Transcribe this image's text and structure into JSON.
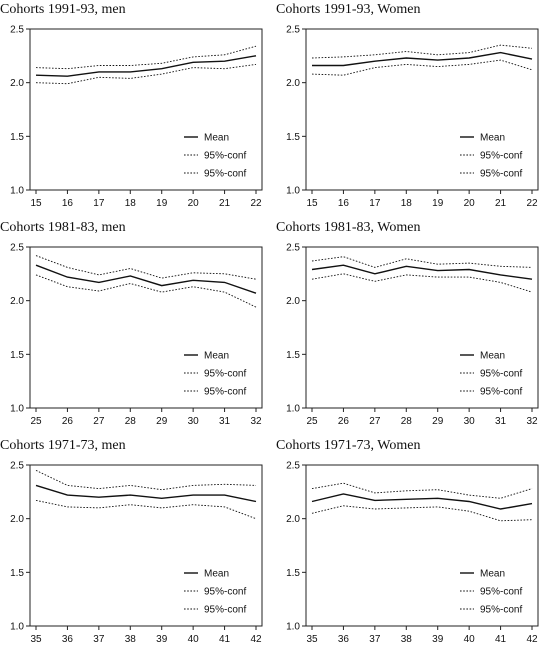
{
  "chart_data": [
    {
      "type": "line",
      "title": "Cohorts 1991-93, men",
      "x": [
        15,
        16,
        17,
        18,
        19,
        20,
        21,
        22
      ],
      "ylim": [
        1.0,
        2.5
      ],
      "yticks": [
        "1.0",
        "1.5",
        "2.0",
        "2.5"
      ],
      "legend_position": "bottom-right",
      "series": [
        {
          "name": "Mean",
          "style": "solid",
          "values": [
            2.07,
            2.06,
            2.1,
            2.1,
            2.13,
            2.19,
            2.2,
            2.25
          ]
        },
        {
          "name": "95%-conf",
          "style": "dotted",
          "values": [
            2.14,
            2.13,
            2.16,
            2.16,
            2.18,
            2.24,
            2.26,
            2.34
          ]
        },
        {
          "name": "95%-conf",
          "style": "dotted",
          "values": [
            2.0,
            1.99,
            2.05,
            2.04,
            2.08,
            2.14,
            2.13,
            2.17
          ]
        }
      ]
    },
    {
      "type": "line",
      "title": "Cohorts 1991-93, Women",
      "x": [
        15,
        16,
        17,
        18,
        19,
        20,
        21,
        22
      ],
      "ylim": [
        1.0,
        2.5
      ],
      "yticks": [
        "1.0",
        "1.5",
        "2.0",
        "2.5"
      ],
      "legend_position": "bottom-right",
      "series": [
        {
          "name": "Mean",
          "style": "solid",
          "values": [
            2.16,
            2.16,
            2.2,
            2.23,
            2.21,
            2.23,
            2.28,
            2.22
          ]
        },
        {
          "name": "95%-conf",
          "style": "dotted",
          "values": [
            2.23,
            2.24,
            2.26,
            2.29,
            2.26,
            2.28,
            2.35,
            2.32
          ]
        },
        {
          "name": "95%-conf",
          "style": "dotted",
          "values": [
            2.08,
            2.07,
            2.14,
            2.17,
            2.15,
            2.17,
            2.21,
            2.12
          ]
        }
      ]
    },
    {
      "type": "line",
      "title": "Cohorts 1981-83, men",
      "x": [
        25,
        26,
        27,
        28,
        29,
        30,
        31,
        32
      ],
      "ylim": [
        1.0,
        2.5
      ],
      "yticks": [
        "1.0",
        "1.5",
        "2.0",
        "2.5"
      ],
      "legend_position": "bottom-right",
      "series": [
        {
          "name": "Mean",
          "style": "solid",
          "values": [
            2.33,
            2.22,
            2.17,
            2.23,
            2.14,
            2.19,
            2.17,
            2.07
          ]
        },
        {
          "name": "95%-conf",
          "style": "dotted",
          "values": [
            2.42,
            2.31,
            2.24,
            2.3,
            2.21,
            2.26,
            2.25,
            2.2
          ]
        },
        {
          "name": "95%-conf",
          "style": "dotted",
          "values": [
            2.24,
            2.13,
            2.09,
            2.16,
            2.08,
            2.13,
            2.08,
            1.94
          ]
        }
      ]
    },
    {
      "type": "line",
      "title": "Cohorts 1981-83, Women",
      "x": [
        25,
        26,
        27,
        28,
        29,
        30,
        31,
        32
      ],
      "ylim": [
        1.0,
        2.5
      ],
      "yticks": [
        "1.0",
        "1.5",
        "2.0",
        "2.5"
      ],
      "legend_position": "bottom-right",
      "series": [
        {
          "name": "Mean",
          "style": "solid",
          "values": [
            2.29,
            2.33,
            2.25,
            2.32,
            2.28,
            2.29,
            2.24,
            2.2
          ]
        },
        {
          "name": "95%-conf",
          "style": "dotted",
          "values": [
            2.37,
            2.41,
            2.31,
            2.39,
            2.34,
            2.35,
            2.32,
            2.31
          ]
        },
        {
          "name": "95%-conf",
          "style": "dotted",
          "values": [
            2.2,
            2.25,
            2.18,
            2.24,
            2.22,
            2.22,
            2.17,
            2.08
          ]
        }
      ]
    },
    {
      "type": "line",
      "title": "Cohorts 1971-73, men",
      "x": [
        35,
        36,
        37,
        38,
        39,
        40,
        41,
        42
      ],
      "ylim": [
        1.0,
        2.5
      ],
      "yticks": [
        "1.0",
        "1.5",
        "2.0",
        "2.5"
      ],
      "legend_position": "bottom-right",
      "series": [
        {
          "name": "Mean",
          "style": "solid",
          "values": [
            2.31,
            2.22,
            2.2,
            2.22,
            2.19,
            2.22,
            2.22,
            2.16
          ]
        },
        {
          "name": "95%-conf",
          "style": "dotted",
          "values": [
            2.45,
            2.31,
            2.28,
            2.31,
            2.27,
            2.31,
            2.32,
            2.31
          ]
        },
        {
          "name": "95%-conf",
          "style": "dotted",
          "values": [
            2.17,
            2.11,
            2.1,
            2.13,
            2.1,
            2.13,
            2.11,
            2.0
          ]
        }
      ]
    },
    {
      "type": "line",
      "title": "Cohorts 1971-73, Women",
      "x": [
        35,
        36,
        37,
        38,
        39,
        40,
        41,
        42
      ],
      "ylim": [
        1.0,
        2.5
      ],
      "yticks": [
        "1.0",
        "1.5",
        "2.0",
        "2.5"
      ],
      "legend_position": "bottom-right",
      "series": [
        {
          "name": "Mean",
          "style": "solid",
          "values": [
            2.16,
            2.23,
            2.17,
            2.18,
            2.19,
            2.16,
            2.09,
            2.14
          ]
        },
        {
          "name": "95%-conf",
          "style": "dotted",
          "values": [
            2.28,
            2.33,
            2.24,
            2.26,
            2.27,
            2.22,
            2.19,
            2.28
          ]
        },
        {
          "name": "95%-conf",
          "style": "dotted",
          "values": [
            2.05,
            2.12,
            2.09,
            2.1,
            2.11,
            2.07,
            1.98,
            1.99
          ]
        }
      ]
    }
  ]
}
